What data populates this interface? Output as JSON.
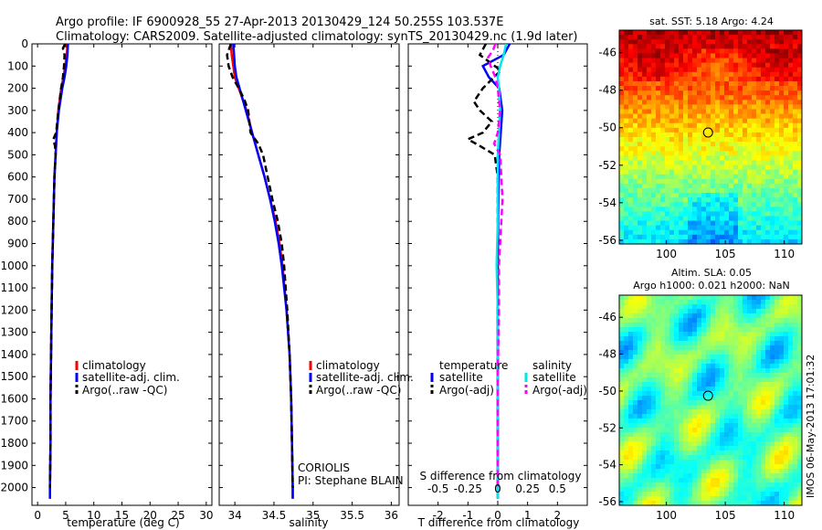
{
  "header": {
    "line1": "Argo profile: IF 6900928_55 27-Apr-2013 20130429_124 50.255S 103.537E",
    "line2": "Climatology: CARS2009. Satellite-adjusted climatology: synTS_20130429.nc (1.9d later)"
  },
  "footer_stamp": "IMOS 06-May-2013 17:01:32",
  "colors": {
    "climatology": "#ff0000",
    "satellite": "#0000ff",
    "argo": "#000000",
    "salinity_satellite": "#00e5ee",
    "salinity_argo": "#ff00ff"
  },
  "chart_data": [
    {
      "id": "temperature",
      "type": "line",
      "xlabel": "temperature (deg C)",
      "ylabel": "",
      "xlim": [
        -1,
        31
      ],
      "ylim": [
        2080,
        0
      ],
      "xticks": [
        0,
        5,
        10,
        15,
        20,
        25,
        30
      ],
      "yticks": [
        0,
        100,
        200,
        300,
        400,
        500,
        600,
        700,
        800,
        900,
        1000,
        1100,
        1200,
        1300,
        1400,
        1500,
        1600,
        1700,
        1800,
        1900,
        2000
      ],
      "legend": [
        "climatology",
        "satellite-adj. clim.",
        "Argo(..raw -QC)"
      ],
      "series": [
        {
          "name": "climatology",
          "style": "solid",
          "depth": [
            0,
            50,
            100,
            150,
            200,
            300,
            400,
            500,
            600,
            800,
            1000,
            1200,
            1400,
            1600,
            1800,
            2000,
            2050
          ],
          "values": [
            5.3,
            5.2,
            4.9,
            4.6,
            4.2,
            3.7,
            3.4,
            3.2,
            3.0,
            2.8,
            2.6,
            2.5,
            2.4,
            2.3,
            2.3,
            2.2,
            2.2
          ]
        },
        {
          "name": "satellite-adj. clim.",
          "style": "solid",
          "depth": [
            0,
            50,
            100,
            150,
            200,
            300,
            400,
            500,
            600,
            800,
            1000,
            1200,
            1400,
            1600,
            1800,
            2000,
            2050
          ],
          "values": [
            5.4,
            5.3,
            5.1,
            4.8,
            4.4,
            3.8,
            3.4,
            3.2,
            3.0,
            2.8,
            2.6,
            2.5,
            2.4,
            2.3,
            2.3,
            2.2,
            2.2
          ]
        },
        {
          "name": "Argo(..raw -QC)",
          "style": "dashed",
          "depth": [
            0,
            20,
            50,
            100,
            150,
            200,
            300,
            400,
            430,
            460,
            500,
            600,
            800,
            1000,
            1200,
            1400,
            1600,
            1800,
            2000
          ],
          "values": [
            4.9,
            4.5,
            4.8,
            4.7,
            4.5,
            4.2,
            3.7,
            3.3,
            2.8,
            3.1,
            3.2,
            3.0,
            2.8,
            2.6,
            2.5,
            2.4,
            2.3,
            2.3,
            2.2
          ]
        }
      ]
    },
    {
      "id": "salinity",
      "type": "line",
      "xlabel": "salinity",
      "ylabel": "",
      "xlim": [
        33.8,
        36.1
      ],
      "ylim": [
        2080,
        0
      ],
      "xticks": [
        34,
        34.5,
        35,
        35.5,
        36
      ],
      "yticks": [],
      "legend": [
        "climatology",
        "satellite-adj. clim.",
        "Argo(..raw -QC)"
      ],
      "annotation": [
        "CORIOLIS",
        "PI: Stephane BLAIN"
      ],
      "series": [
        {
          "name": "climatology",
          "style": "solid",
          "depth": [
            0,
            50,
            100,
            150,
            200,
            300,
            400,
            500,
            600,
            700,
            800,
            900,
            1000,
            1200,
            1400,
            1600,
            1800,
            2000,
            2050
          ],
          "values": [
            33.95,
            33.96,
            33.98,
            34.0,
            34.05,
            34.15,
            34.22,
            34.3,
            34.38,
            34.45,
            34.52,
            34.57,
            34.61,
            34.66,
            34.7,
            34.72,
            34.73,
            34.74,
            34.74
          ]
        },
        {
          "name": "satellite-adj. clim.",
          "style": "solid",
          "depth": [
            0,
            50,
            100,
            150,
            200,
            300,
            400,
            500,
            600,
            700,
            800,
            900,
            1000,
            1200,
            1400,
            1600,
            1800,
            2000,
            2050
          ],
          "values": [
            33.98,
            33.99,
            34.0,
            34.02,
            34.06,
            34.14,
            34.22,
            34.3,
            34.38,
            34.45,
            34.51,
            34.56,
            34.6,
            34.66,
            34.7,
            34.72,
            34.73,
            34.74,
            34.74
          ]
        },
        {
          "name": "Argo(..raw -QC)",
          "style": "dashed",
          "depth": [
            0,
            50,
            100,
            150,
            200,
            250,
            300,
            400,
            450,
            500,
            600,
            700,
            800,
            900,
            1000,
            1200,
            1400,
            1600,
            1800,
            2000
          ],
          "values": [
            33.95,
            33.9,
            33.92,
            33.97,
            34.05,
            34.12,
            34.17,
            34.2,
            34.3,
            34.36,
            34.42,
            34.48,
            34.55,
            34.6,
            34.63,
            34.67,
            34.7,
            34.72,
            34.73,
            34.74
          ]
        }
      ]
    },
    {
      "id": "difference",
      "type": "line",
      "xlabel": "T difference from climatology",
      "top_axis_label": "S difference from climatology",
      "xlim": [
        -3,
        3
      ],
      "ylim": [
        2080,
        0
      ],
      "xticks": [
        -2,
        -1,
        0,
        1,
        2
      ],
      "top_ticks": [
        -0.5,
        -0.25,
        0,
        0.25,
        0.5
      ],
      "top_tick_labels": [
        "-0.5",
        "-0.25",
        "0",
        "0.25",
        "0.5"
      ],
      "top_xlim": [
        -0.75,
        0.75
      ],
      "yticks": [],
      "legend_headers": [
        "temperature",
        "salinity"
      ],
      "legend": [
        "satellite",
        "Argo(-adj)",
        "satellite",
        "Argo(-adj)"
      ],
      "series": [
        {
          "name": "temperature satellite",
          "axis": "T",
          "style": "solid",
          "depth": [
            0,
            50,
            100,
            150,
            200,
            300,
            400,
            500,
            700,
            1000,
            1500,
            2000,
            2050
          ],
          "values": [
            0.4,
            0.2,
            -0.5,
            -0.3,
            0.05,
            0.15,
            0.1,
            0.05,
            0.02,
            0.0,
            0.0,
            0.0,
            0.0
          ]
        },
        {
          "name": "temperature Argo(-adj)",
          "axis": "T",
          "style": "dashed",
          "depth": [
            0,
            50,
            80,
            120,
            160,
            200,
            260,
            300,
            350,
            400,
            430,
            460,
            500,
            600,
            800,
            1000,
            1500,
            2000
          ],
          "values": [
            -0.4,
            -0.6,
            -0.3,
            0.1,
            -0.2,
            -0.5,
            -0.8,
            -0.6,
            -0.2,
            -0.5,
            -1.0,
            -0.6,
            -0.1,
            0.0,
            0.0,
            0.0,
            0.0,
            0.0
          ]
        },
        {
          "name": "salinity satellite",
          "axis": "S",
          "style": "solid",
          "depth": [
            0,
            50,
            100,
            150,
            200,
            300,
            400,
            500,
            600,
            800,
            1000,
            1200,
            1500,
            2000,
            2050
          ],
          "values": [
            0.07,
            0.05,
            0.02,
            0.0,
            0.01,
            0.02,
            0.01,
            0.0,
            0.0,
            0.0,
            -0.01,
            0.0,
            0.0,
            0.0,
            0.0
          ]
        },
        {
          "name": "salinity Argo(-adj)",
          "axis": "S",
          "style": "dashed",
          "depth": [
            0,
            30,
            60,
            100,
            150,
            200,
            300,
            400,
            450,
            500,
            600,
            700,
            800,
            900,
            1000,
            1200,
            1500,
            2000
          ],
          "values": [
            -0.02,
            -0.04,
            -0.08,
            -0.06,
            -0.02,
            0.0,
            0.02,
            0.0,
            -0.03,
            0.02,
            0.03,
            0.04,
            0.03,
            0.02,
            0.01,
            0.01,
            0.0,
            0.0
          ]
        }
      ]
    },
    {
      "id": "sst-map",
      "type": "heatmap",
      "title": "sat. SST: 5.18  Argo: 4.24",
      "xlim": [
        96,
        111.5
      ],
      "ylim": [
        -56.2,
        -44.8
      ],
      "xticks": [
        100,
        105,
        110
      ],
      "yticks": [
        -46,
        -48,
        -50,
        -52,
        -54,
        -56
      ],
      "float_position": {
        "lon": 103.537,
        "lat": -50.255
      }
    },
    {
      "id": "sla-map",
      "type": "heatmap",
      "title_line1": "Altim. SLA: 0.05",
      "title_line2": "Argo h1000: 0.021 h2000: NaN",
      "xlim": [
        96,
        111.5
      ],
      "ylim": [
        -56.2,
        -44.8
      ],
      "xticks": [
        100,
        105,
        110
      ],
      "yticks": [
        -46,
        -48,
        -50,
        -52,
        -54,
        -56
      ],
      "float_position": {
        "lon": 103.537,
        "lat": -50.255
      }
    }
  ]
}
